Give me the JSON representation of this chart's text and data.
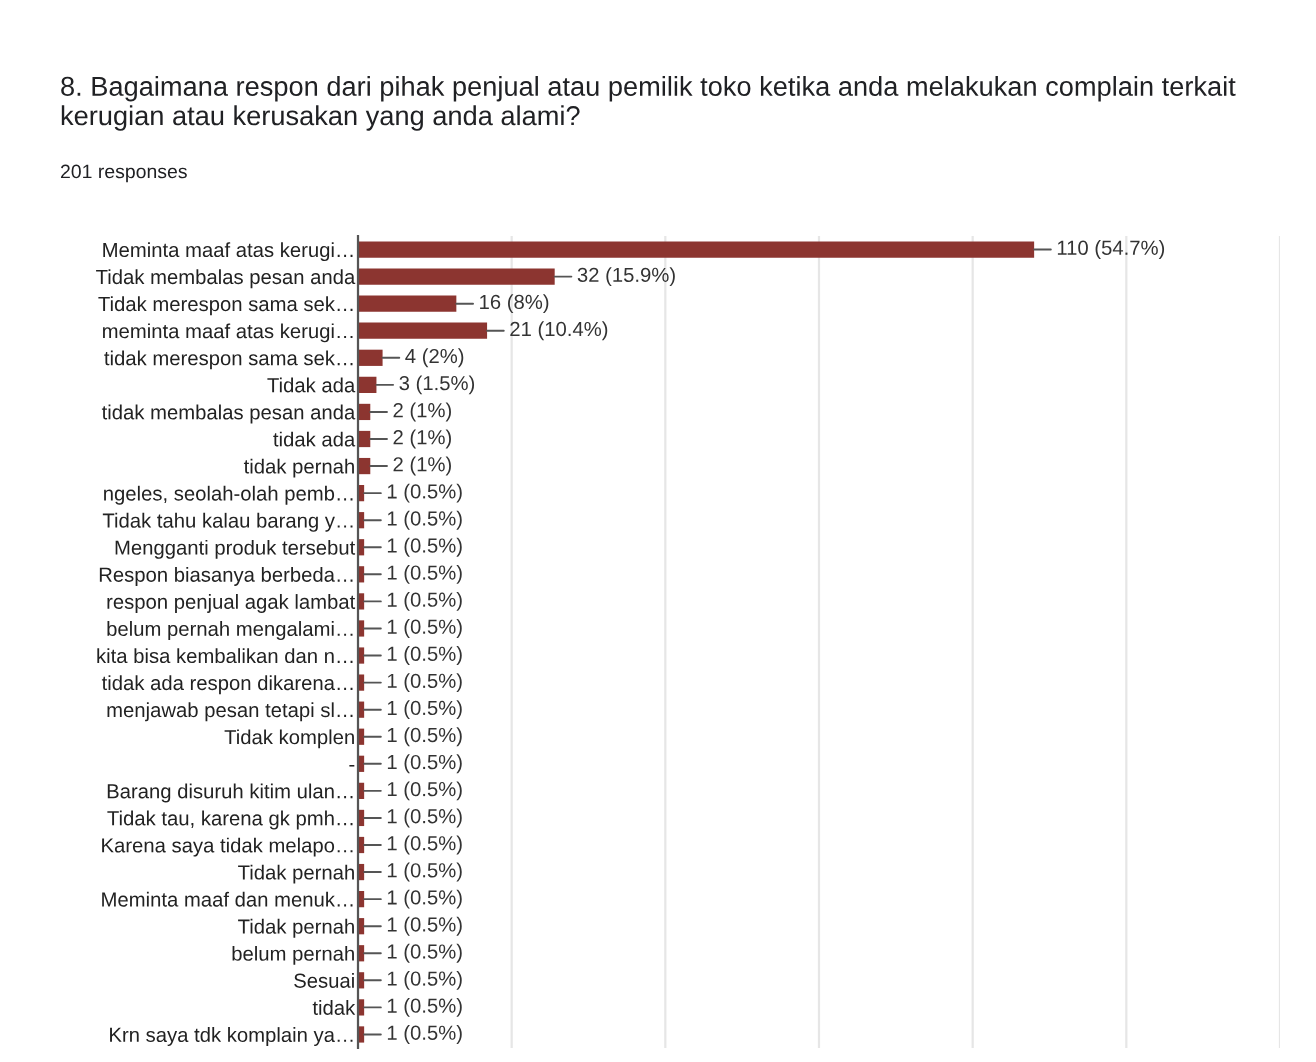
{
  "chart_data": {
    "type": "bar",
    "orientation": "horizontal",
    "title": "8. Bagaimana respon dari pihak penjual atau pemilik toko ketika anda melakukan complain terkait kerugian atau kerusakan yang anda alami?",
    "subtitle": "201 responses",
    "categories": [
      "Meminta maaf atas kerugi…",
      "Tidak membalas pesan anda",
      "Tidak merespon sama sek…",
      "meminta maaf atas kerugi…",
      "tidak merespon sama sek…",
      "Tidak ada",
      "tidak membalas pesan anda",
      "tidak ada",
      "tidak pernah",
      "ngeles, seolah-olah pemb…",
      "Tidak tahu kalau barang y…",
      "Mengganti produk tersebut",
      "Respon biasanya berbeda…",
      "respon penjual agak lambat",
      "belum pernah mengalami…",
      "kita bisa kembalikan dan n…",
      "tidak ada respon dikarena…",
      "menjawab pesan tetapi sl…",
      "Tidak komplen",
      "-",
      "Barang disuruh kitim ulan…",
      "Tidak tau, karena gk pmh…",
      "Karena saya tidak melapo…",
      "Tidak pernah",
      "Meminta maaf dan menuk…",
      "Tidak pernah",
      "belum pernah",
      "Sesuai",
      "tidak",
      "Krn saya tdk komplain ya…"
    ],
    "values": [
      110,
      32,
      16,
      21,
      4,
      3,
      2,
      2,
      2,
      1,
      1,
      1,
      1,
      1,
      1,
      1,
      1,
      1,
      1,
      1,
      1,
      1,
      1,
      1,
      1,
      1,
      1,
      1,
      1,
      1
    ],
    "value_labels": [
      "110 (54.7%)",
      "32 (15.9%)",
      "16 (8%)",
      "21 (10.4%)",
      "4 (2%)",
      "3 (1.5%)",
      "2 (1%)",
      "2 (1%)",
      "2 (1%)",
      "1 (0.5%)",
      "1 (0.5%)",
      "1 (0.5%)",
      "1 (0.5%)",
      "1 (0.5%)",
      "1 (0.5%)",
      "1 (0.5%)",
      "1 (0.5%)",
      "1 (0.5%)",
      "1 (0.5%)",
      "1 (0.5%)",
      "1 (0.5%)",
      "1 (0.5%)",
      "1 (0.5%)",
      "1 (0.5%)",
      "1 (0.5%)",
      "1 (0.5%)",
      "1 (0.5%)",
      "1 (0.5%)",
      "1 (0.5%)",
      "1 (0.5%)"
    ],
    "color": "#8c3530",
    "xlim": [
      0,
      150
    ],
    "xticks": [
      {
        "value": 0,
        "label": null
      },
      {
        "value": 25,
        "label": null
      },
      {
        "value": 50,
        "label": null
      },
      {
        "value": 75,
        "label": null
      },
      {
        "value": 100,
        "label": null
      },
      {
        "value": 125,
        "label": null
      },
      {
        "value": 150,
        "label": null
      }
    ],
    "tick_labels": "y",
    "grid": "x",
    "legend": false
  }
}
